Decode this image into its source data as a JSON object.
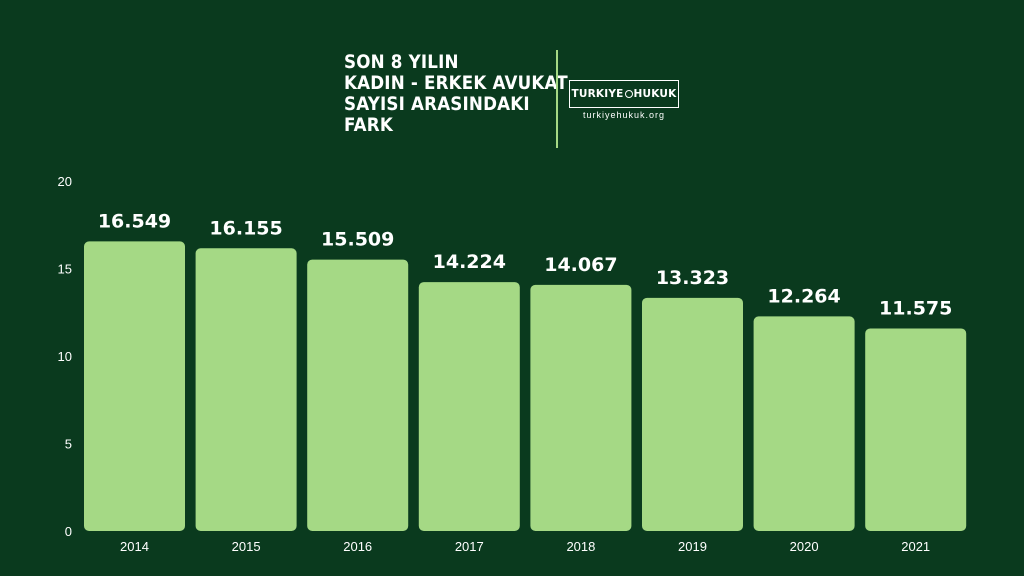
{
  "header": {
    "title_lines": [
      "SON 8 YILIN",
      "KADIN - ERKEK AVUKAT",
      "SAYISI ARASINDAKI",
      "FARK"
    ]
  },
  "logo": {
    "text_left": "TURKIYE",
    "text_right": "HUKUK",
    "url": "turkiyehukuk.org"
  },
  "colors": {
    "background": "#0a3a1e",
    "bar": "#a5d985",
    "text": "#ffffff"
  },
  "chart_data": {
    "type": "bar",
    "categories": [
      "2014",
      "2015",
      "2016",
      "2017",
      "2018",
      "2019",
      "2020",
      "2021"
    ],
    "values": [
      16.549,
      16.155,
      15.509,
      14.224,
      14.067,
      13.323,
      12.264,
      11.575
    ],
    "value_labels": [
      "16.549",
      "16.155",
      "15.509",
      "14.224",
      "14.067",
      "13.323",
      "12.264",
      "11.575"
    ],
    "y_ticks": [
      "0",
      "5",
      "10",
      "15",
      "20"
    ],
    "ylim": [
      0,
      20
    ],
    "title": "",
    "xlabel": "",
    "ylabel": "",
    "grid": false,
    "legend": "none"
  }
}
